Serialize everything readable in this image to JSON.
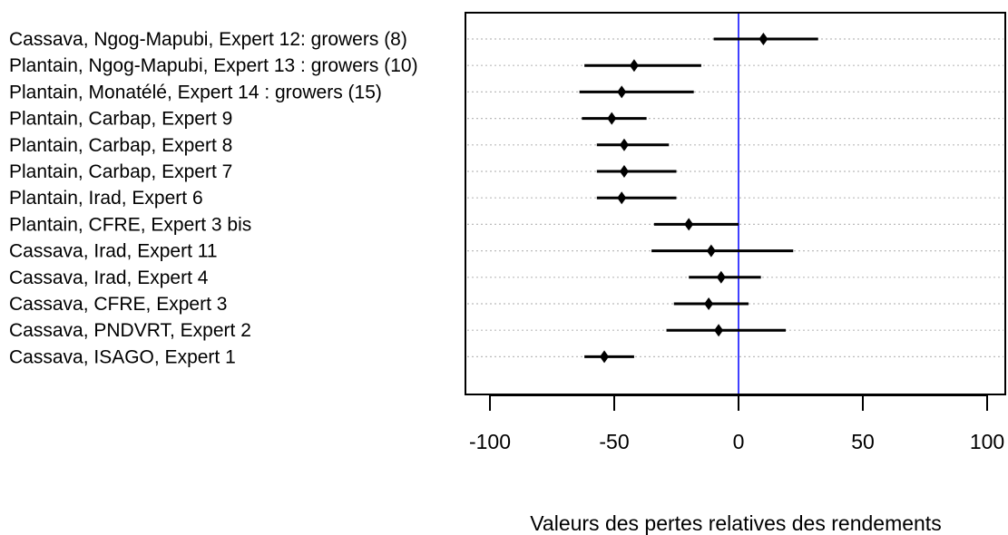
{
  "chart_data": {
    "type": "scatter",
    "subtype": "interval-dot-plot",
    "xlabel": "Valeurs des pertes relatives des rendements",
    "ylabel": "",
    "xlim": [
      -105,
      105
    ],
    "xticks": [
      -100,
      -50,
      0,
      50,
      100
    ],
    "xtick_labels": [
      "-100",
      "-50",
      "0",
      "50",
      "100"
    ],
    "reference_line": {
      "x": 0,
      "color": "#0000ff"
    },
    "grid": "dotted horizontal lines at each row",
    "rows": [
      {
        "label": "Cassava, Ngog-Mapubi, Expert 12: growers (8)",
        "value": 10,
        "low": -10,
        "high": 32
      },
      {
        "label": "Plantain, Ngog-Mapubi, Expert 13 : growers (10)",
        "value": -42,
        "low": -62,
        "high": -15
      },
      {
        "label": "Plantain, Monatélé, Expert 14 : growers (15)",
        "value": -47,
        "low": -64,
        "high": -18
      },
      {
        "label": "Plantain, Carbap, Expert 9",
        "value": -51,
        "low": -63,
        "high": -37
      },
      {
        "label": "Plantain, Carbap, Expert 8",
        "value": -46,
        "low": -57,
        "high": -28
      },
      {
        "label": "Plantain, Carbap, Expert 7",
        "value": -46,
        "low": -57,
        "high": -25
      },
      {
        "label": "Plantain, Irad, Expert 6",
        "value": -47,
        "low": -57,
        "high": -25
      },
      {
        "label": "Plantain, CFRE, Expert 3 bis",
        "value": -20,
        "low": -34,
        "high": 0
      },
      {
        "label": "Cassava, Irad, Expert 11",
        "value": -11,
        "low": -35,
        "high": 22
      },
      {
        "label": "Cassava, Irad, Expert 4",
        "value": -7,
        "low": -20,
        "high": 9
      },
      {
        "label": "Cassava, CFRE, Expert 3",
        "value": -12,
        "low": -26,
        "high": 4
      },
      {
        "label": "Cassava, PNDVRT, Expert 2",
        "value": -8,
        "low": -29,
        "high": 19
      },
      {
        "label": "Cassava, ISAGO, Expert 1",
        "value": -54,
        "low": -62,
        "high": -42
      }
    ],
    "colors": {
      "marker": "#000000",
      "reference_line": "#0000ff",
      "grid": "#bbbbbb"
    }
  }
}
